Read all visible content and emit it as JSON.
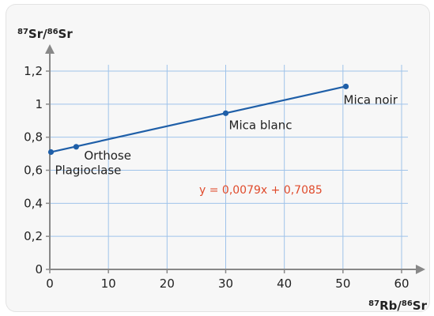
{
  "chart_data": {
    "type": "scatter",
    "title": "",
    "ylabel": {
      "sup1": "87",
      "mid": "Sr/",
      "sup2": "86",
      "end": "Sr"
    },
    "xlabel": {
      "sup1": "87",
      "mid": "Rb/",
      "sup2": "86",
      "end": "Sr"
    },
    "xlim": [
      0,
      60
    ],
    "ylim": [
      0,
      1.2
    ],
    "xticks": [
      0,
      10,
      20,
      30,
      40,
      50,
      60
    ],
    "xtick_labels": [
      "0",
      "10",
      "20",
      "30",
      "40",
      "50",
      "60"
    ],
    "yticks": [
      0,
      0.2,
      0.4,
      0.6,
      0.8,
      1.0,
      1.2
    ],
    "ytick_labels": [
      "0",
      "0,2",
      "0,4",
      "0,6",
      "0,8",
      "1",
      "1,2"
    ],
    "grid": true,
    "series": [
      {
        "points": [
          {
            "x": 0.2,
            "y": 0.71,
            "label": "Plagioclase"
          },
          {
            "x": 4.5,
            "y": 0.742,
            "label": "Orthose"
          },
          {
            "x": 30,
            "y": 0.945,
            "label": "Mica blanc"
          },
          {
            "x": 50.5,
            "y": 1.107,
            "label": "Mica noir"
          }
        ],
        "fit": {
          "slope": 0.0079,
          "intercept": 0.7085
        }
      }
    ],
    "equation": "y = 0,0079x + 0,7085",
    "colors": {
      "line": "#1f5fa8",
      "point": "#1f5fa8",
      "grid": "#9fc3ea",
      "axis": "#888888",
      "equation": "#e04b2c"
    }
  }
}
